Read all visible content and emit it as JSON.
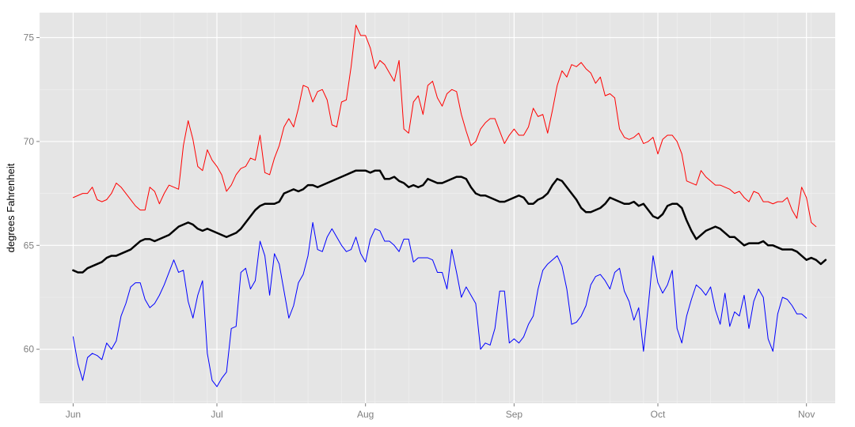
{
  "chart_data": {
    "type": "line",
    "title": "",
    "xlabel": "",
    "ylabel": "degrees Fahrenheit",
    "x_ticks": [
      "Jun",
      "Jul",
      "Aug",
      "Sep",
      "Oct",
      "Nov"
    ],
    "x_tick_dates": [
      "2013-06-01",
      "2013-07-01",
      "2013-08-01",
      "2013-09-01",
      "2013-10-01",
      "2013-11-01"
    ],
    "y_ticks": [
      60,
      65,
      70,
      75
    ],
    "xlim": [
      "2013-05-25",
      "2013-11-07"
    ],
    "ylim": [
      57.4,
      76.2
    ],
    "grid": true,
    "background": "#e5e5e5",
    "start_date": "2013-06-01",
    "series": [
      {
        "color": "#ff0000",
        "stroke_width": 1,
        "values": [
          67.3,
          67.4,
          67.5,
          67.5,
          67.8,
          67.2,
          67.1,
          67.2,
          67.5,
          68.0,
          67.8,
          67.5,
          67.2,
          66.9,
          66.7,
          66.7,
          67.8,
          67.6,
          67.0,
          67.5,
          67.9,
          67.8,
          67.7,
          69.8,
          71.0,
          70.1,
          68.8,
          68.6,
          69.6,
          69.1,
          68.8,
          68.4,
          67.6,
          67.9,
          68.4,
          68.7,
          68.8,
          69.2,
          69.1,
          70.3,
          68.5,
          68.4,
          69.2,
          69.8,
          70.7,
          71.1,
          70.7,
          71.6,
          72.7,
          72.6,
          71.9,
          72.4,
          72.5,
          72.0,
          70.8,
          70.7,
          71.9,
          72.0,
          73.6,
          75.6,
          75.1,
          75.1,
          74.5,
          73.5,
          73.9,
          73.7,
          73.3,
          72.9,
          73.9,
          70.6,
          70.4,
          71.9,
          72.2,
          71.3,
          72.7,
          72.9,
          72.1,
          71.7,
          72.3,
          72.5,
          72.4,
          71.3,
          70.5,
          69.8,
          70.0,
          70.6,
          70.9,
          71.1,
          71.1,
          70.5,
          69.9,
          70.3,
          70.6,
          70.3,
          70.3,
          70.7,
          71.6,
          71.2,
          71.3,
          70.4,
          71.5,
          72.7,
          73.4,
          73.1,
          73.7,
          73.6,
          73.8,
          73.5,
          73.3,
          72.8,
          73.1,
          72.2,
          72.3,
          72.1,
          70.6,
          70.2,
          70.1,
          70.2,
          70.4,
          69.9,
          70.0,
          70.2,
          69.4,
          70.1,
          70.3,
          70.3,
          70.0,
          69.4,
          68.1,
          68.0,
          67.9,
          68.6,
          68.3,
          68.1,
          67.9,
          67.9,
          67.8,
          67.7,
          67.5,
          67.6,
          67.3,
          67.1,
          67.6,
          67.5,
          67.1,
          67.1,
          67.0,
          67.1,
          67.1,
          67.3,
          66.7,
          66.3,
          67.8,
          67.3,
          66.1,
          65.9
        ]
      },
      {
        "color": "#000000",
        "stroke_width": 2.5,
        "values": [
          63.8,
          63.7,
          63.7,
          63.9,
          64.0,
          64.1,
          64.2,
          64.4,
          64.5,
          64.5,
          64.6,
          64.7,
          64.8,
          65.0,
          65.2,
          65.3,
          65.3,
          65.2,
          65.3,
          65.4,
          65.5,
          65.7,
          65.9,
          66.0,
          66.1,
          66.0,
          65.8,
          65.7,
          65.8,
          65.7,
          65.6,
          65.5,
          65.4,
          65.5,
          65.6,
          65.8,
          66.1,
          66.4,
          66.7,
          66.9,
          67.0,
          67.0,
          67.0,
          67.1,
          67.5,
          67.6,
          67.7,
          67.6,
          67.7,
          67.9,
          67.9,
          67.8,
          67.9,
          68.0,
          68.1,
          68.2,
          68.3,
          68.4,
          68.5,
          68.6,
          68.6,
          68.6,
          68.5,
          68.6,
          68.6,
          68.2,
          68.2,
          68.3,
          68.1,
          68.0,
          67.8,
          67.9,
          67.8,
          67.9,
          68.2,
          68.1,
          68.0,
          68.0,
          68.1,
          68.2,
          68.3,
          68.3,
          68.2,
          67.8,
          67.5,
          67.4,
          67.4,
          67.3,
          67.2,
          67.1,
          67.1,
          67.2,
          67.3,
          67.4,
          67.3,
          67.0,
          67.0,
          67.2,
          67.3,
          67.5,
          67.9,
          68.2,
          68.1,
          67.8,
          67.5,
          67.2,
          66.8,
          66.6,
          66.6,
          66.7,
          66.8,
          67.0,
          67.3,
          67.2,
          67.1,
          67.0,
          67.0,
          67.1,
          66.9,
          67.0,
          66.7,
          66.4,
          66.3,
          66.5,
          66.9,
          67.0,
          67.0,
          66.8,
          66.2,
          65.7,
          65.3,
          65.5,
          65.7,
          65.8,
          65.9,
          65.8,
          65.6,
          65.4,
          65.4,
          65.2,
          65.0,
          65.1,
          65.1,
          65.1,
          65.2,
          65.0,
          65.0,
          64.9,
          64.8,
          64.8,
          64.8,
          64.7,
          64.5,
          64.3,
          64.4,
          64.3,
          64.1,
          64.3
        ]
      },
      {
        "color": "#0000ff",
        "stroke_width": 1,
        "values": [
          60.6,
          59.3,
          58.5,
          59.6,
          59.8,
          59.7,
          59.5,
          60.3,
          60.0,
          60.4,
          61.6,
          62.2,
          63.0,
          63.2,
          63.2,
          62.4,
          62.0,
          62.2,
          62.6,
          63.1,
          63.7,
          64.3,
          63.7,
          63.8,
          62.3,
          61.5,
          62.6,
          63.3,
          59.8,
          58.5,
          58.2,
          58.6,
          58.9,
          61.0,
          61.1,
          63.7,
          63.9,
          62.9,
          63.3,
          65.2,
          64.5,
          62.6,
          64.6,
          64.1,
          62.8,
          61.5,
          62.1,
          63.2,
          63.6,
          64.5,
          66.1,
          64.8,
          64.7,
          65.4,
          65.8,
          65.4,
          65.0,
          64.7,
          64.8,
          65.4,
          64.6,
          64.2,
          65.3,
          65.8,
          65.7,
          65.2,
          65.2,
          65.0,
          64.7,
          65.3,
          65.3,
          64.2,
          64.4,
          64.4,
          64.4,
          64.3,
          63.7,
          63.7,
          62.9,
          64.8,
          63.7,
          62.5,
          63.0,
          62.6,
          62.2,
          60.0,
          60.3,
          60.2,
          61.0,
          62.8,
          62.8,
          60.3,
          60.5,
          60.3,
          60.6,
          61.2,
          61.6,
          62.9,
          63.8,
          64.1,
          64.3,
          64.5,
          64.0,
          62.9,
          61.2,
          61.3,
          61.6,
          62.1,
          63.1,
          63.5,
          63.6,
          63.3,
          62.9,
          63.7,
          63.9,
          62.8,
          62.3,
          61.4,
          62.0,
          59.9,
          62.1,
          64.5,
          63.2,
          62.7,
          63.1,
          63.8,
          61.0,
          60.3,
          61.6,
          62.4,
          63.1,
          62.9,
          62.6,
          63.0,
          61.9,
          61.2,
          62.7,
          61.1,
          61.8,
          61.6,
          62.6,
          61.0,
          62.3,
          62.9,
          62.5,
          60.5,
          59.9,
          61.7,
          62.5,
          62.4,
          62.1,
          61.7,
          61.7,
          61.5
        ]
      }
    ]
  }
}
